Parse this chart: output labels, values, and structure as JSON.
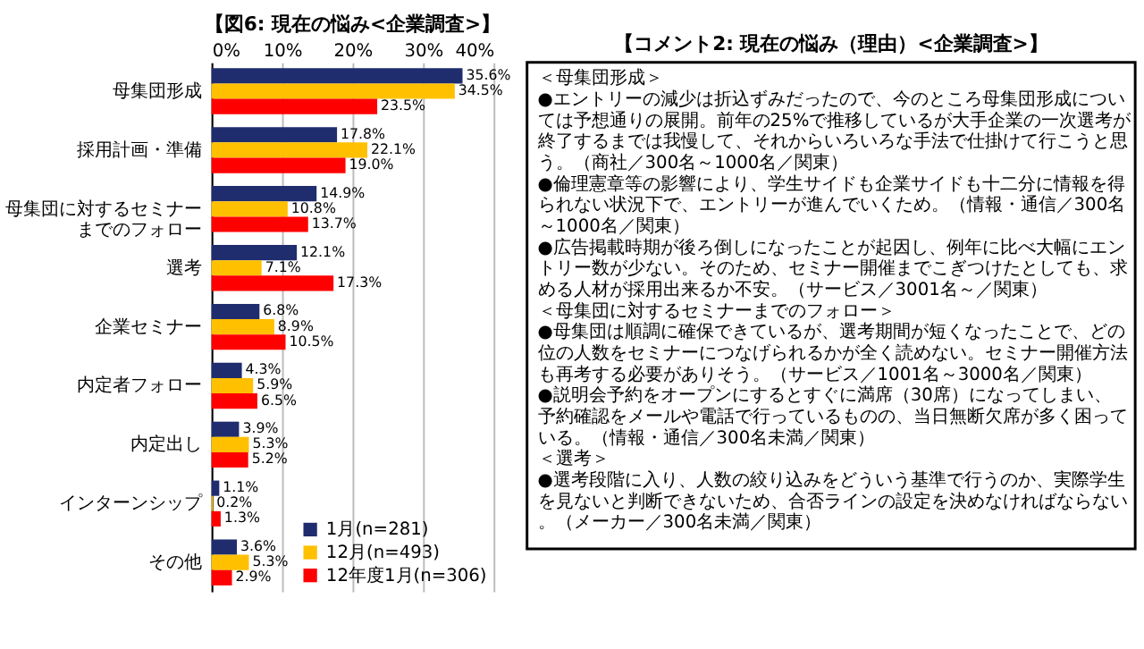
{
  "chart_data": [
    {
      "type": "bar",
      "orientation": "horizontal",
      "title": "【図6: 現在の悩み<企業調査>】",
      "categories": [
        "母集団形成",
        "採用計画・準備",
        "母集団に対するセミナーまでのフォロー",
        "選考",
        "企業セミナー",
        "内定者フォロー",
        "内定出し",
        "インターンシップ",
        "その他"
      ],
      "series": [
        {
          "name": "1月(n=281)",
          "color": "#1f2d6e",
          "values": [
            35.6,
            17.8,
            14.9,
            12.1,
            6.8,
            4.3,
            3.9,
            1.1,
            3.6
          ],
          "value_labels": [
            "35.6%",
            "17.8%",
            "14.9%",
            "12.1%",
            "6.8%",
            "4.3%",
            "3.9%",
            "1.1%",
            "3.6%"
          ]
        },
        {
          "name": "12月(n=493)",
          "color": "#ffc000",
          "values": [
            34.5,
            22.1,
            10.8,
            7.1,
            8.9,
            5.9,
            5.3,
            0.2,
            5.3
          ],
          "value_labels": [
            "34.5%",
            "22.1%",
            "10.8%",
            "7.1%",
            "8.9%",
            "5.9%",
            "5.3%",
            "0.2%",
            "5.3%"
          ]
        },
        {
          "name": "12年度1月(n=306)",
          "color": "#ff0000",
          "values": [
            23.5,
            19.0,
            13.7,
            17.3,
            10.5,
            6.5,
            5.2,
            1.3,
            2.9
          ],
          "value_labels": [
            "23.5%",
            "19.0%",
            "13.7%",
            "17.3%",
            "10.5%",
            "6.5%",
            "5.2%",
            "1.3%",
            "2.9%"
          ]
        }
      ],
      "xlim": [
        0,
        40
      ],
      "xticks": [
        {
          "value": 0,
          "label": "0%"
        },
        {
          "value": 10,
          "label": "10%"
        },
        {
          "value": 20,
          "label": "20%"
        },
        {
          "value": 30,
          "label": "30%"
        },
        {
          "value": 40,
          "label": "40%"
        }
      ],
      "grid": "x",
      "legend": "bottom right"
    },
    {
      "type": "other",
      "title": "【コメント2: 現在の悩み（理由）<企業調査>】",
      "annotations": [
        "＜母集団形成＞",
        "●エントリーの減少は折込ずみだったので、今のところ母集団形成については予想通りの展開。前年の25%で推移しているが大手企業の一次選考が終了するまでは我慢して、それからいろいろな手法で仕掛けて行こうと思う。（商社／300名～1000名／関東）",
        "●倫理憲章等の影響により、学生サイドも企業サイドも十二分に情報を得られない状況下で、エントリーが進んでいくため。（情報・通信／300名～1000名／関東）",
        "●広告掲載時期が後ろ倒しになったことが起因し、例年に比べ大幅にエントリー数が少ない。そのため、セミナー開催までこぎつけたとしても、求める人材が採用出来るか不安。（サービス／3001名～／関東）",
        "＜母集団に対するセミナーまでのフォロー＞",
        "●母集団は順調に確保できているが、選考期間が短くなったことで、どの位の人数をセミナーにつなげられるかが全く読めない。セミナー開催方法も再考する必要がありそう。（サービス／1001名～3000名／関東）",
        "●説明会予約をオープンにするとすぐに満席（30席）になってしまい、予約確認をメールや電話で行っているものの、当日無断欠席が多く困っている。（情報・通信／300名未満／関東）",
        "＜選考＞",
        "●選考段階に入り、人数の絞り込みをどういう基準で行うのか、実際学生を見ないと判断できないため、合否ラインの設定を決めなければならない。（メーカー／300名未満／関東）"
      ]
    }
  ]
}
